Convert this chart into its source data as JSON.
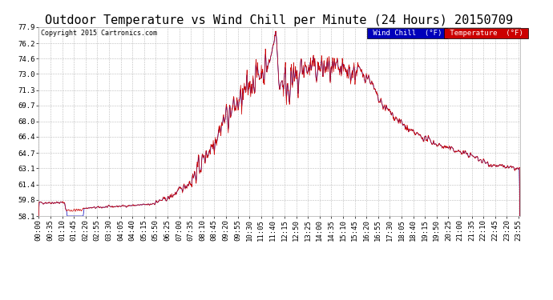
{
  "title": "Outdoor Temperature vs Wind Chill per Minute (24 Hours) 20150709",
  "copyright": "Copyright 2015 Cartronics.com",
  "background_color": "#ffffff",
  "plot_bg_color": "#ffffff",
  "grid_color": "#bbbbbb",
  "line_color_temp": "#cc0000",
  "line_color_wind": "#0000bb",
  "ylim": [
    58.1,
    77.9
  ],
  "yticks": [
    58.1,
    59.8,
    61.4,
    63.1,
    64.7,
    66.4,
    68.0,
    69.7,
    71.3,
    73.0,
    74.6,
    76.2,
    77.9
  ],
  "legend_wind_label": "Wind Chill  (°F)",
  "legend_temp_label": "Temperature  (°F)",
  "legend_wind_bg": "#0000bb",
  "legend_temp_bg": "#cc0000",
  "title_fontsize": 11,
  "tick_fontsize": 6.5,
  "xlabel_rotation": 90,
  "tick_step_minutes": 35
}
